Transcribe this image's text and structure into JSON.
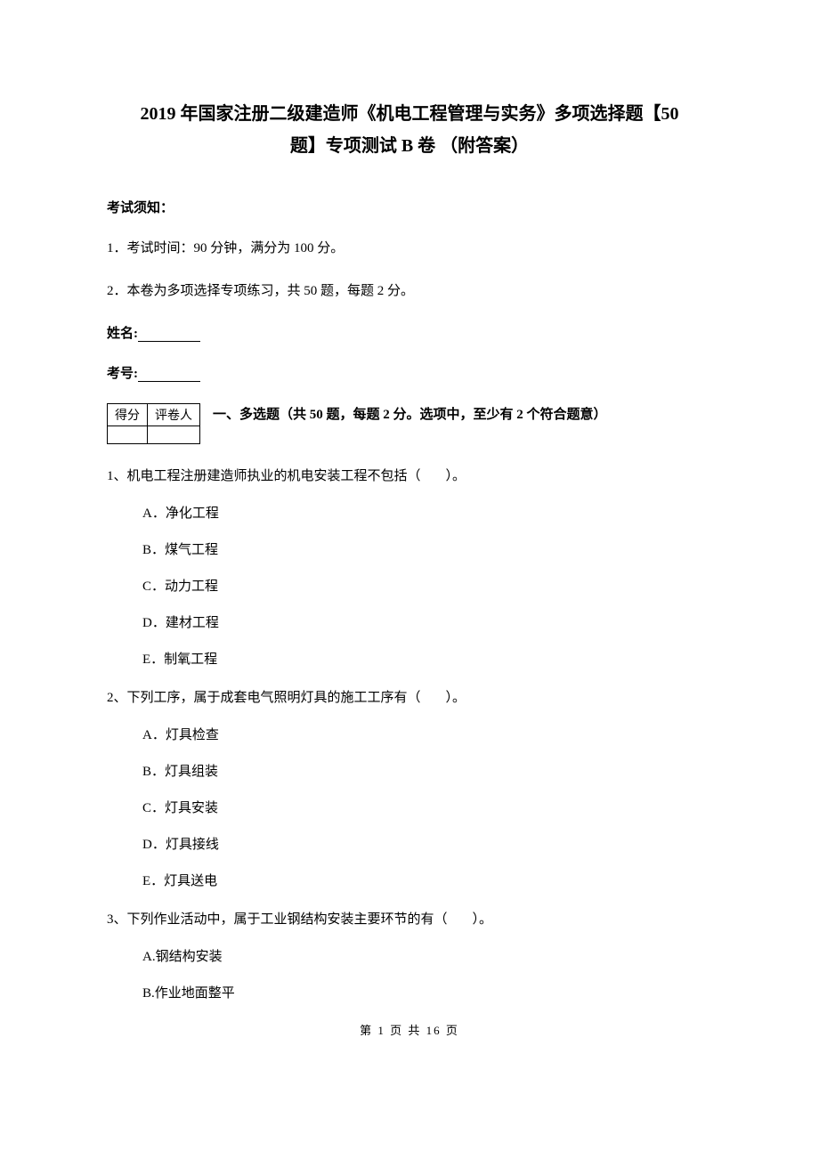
{
  "title": {
    "line1": "2019 年国家注册二级建造师《机电工程管理与实务》多项选择题【50",
    "line2": "题】专项测试 B 卷 （附答案）"
  },
  "notice": {
    "heading": "考试须知：",
    "items": [
      "1．考试时间：90 分钟，满分为 100 分。",
      "2．本卷为多项选择专项练习，共 50 题，每题 2 分。"
    ]
  },
  "fields": {
    "name_label": "姓名:",
    "id_label": "考号:"
  },
  "score_table": {
    "col1": "得分",
    "col2": "评卷人"
  },
  "section": {
    "heading": "一、多选题（共 50 题，每题 2 分。选项中，至少有 2 个符合题意）"
  },
  "questions": [
    {
      "stem_prefix": "1、机电工程注册建造师执业的机电安装工程不包括（",
      "stem_suffix": "）。",
      "options": [
        "A．净化工程",
        "B．煤气工程",
        "C．动力工程",
        "D．建材工程",
        "E．制氧工程"
      ]
    },
    {
      "stem_prefix": "2、下列工序，属于成套电气照明灯具的施工工序有（",
      "stem_suffix": "）。",
      "options": [
        "A．灯具检查",
        "B．灯具组装",
        "C．灯具安装",
        "D．灯具接线",
        "E．灯具送电"
      ]
    },
    {
      "stem_prefix": "3、下列作业活动中，属于工业钢结构安装主要环节的有（",
      "stem_suffix": "）。",
      "options": [
        "A.钢结构安装",
        "B.作业地面整平"
      ]
    }
  ],
  "footer": "第 1 页 共 16 页"
}
